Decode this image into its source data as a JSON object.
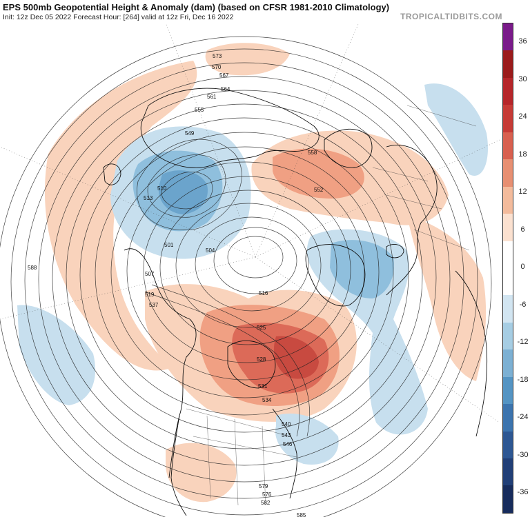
{
  "header": {
    "title": "EPS 500mb Geopotential Height & Anomaly (dam) (based on CFSR 1981-2010 Climatology)",
    "subtitle": "Init: 12z Dec 05 2022   Forecast Hour: [264]   valid at 12z Fri, Dec 16 2022",
    "brand": "TROPICALTIDBITS.COM"
  },
  "colorbar": {
    "ticks": [
      "36",
      "30",
      "24",
      "18",
      "12",
      "6",
      "0",
      "-6",
      "-12",
      "-18",
      "-24",
      "-30",
      "-36"
    ],
    "colors": [
      "#7a1a8a",
      "#9b1b1b",
      "#b6262a",
      "#c63b36",
      "#d8604f",
      "#e78f72",
      "#f3bb9c",
      "#fbe1d0",
      "#ffffff",
      "#ffffff",
      "#d2e5f1",
      "#a6cde3",
      "#7cb0d3",
      "#5494c3",
      "#3c74ae",
      "#2d5793",
      "#213f77",
      "#172c5c"
    ]
  },
  "map": {
    "projection": "north-polar-stereographic",
    "contour_labels": [
      "501",
      "504",
      "507",
      "510",
      "513",
      "516",
      "519",
      "525",
      "528",
      "531",
      "534",
      "537",
      "540",
      "543",
      "546",
      "549",
      "552",
      "555",
      "558",
      "561",
      "564",
      "567",
      "570",
      "573",
      "576",
      "579",
      "582",
      "585",
      "588"
    ],
    "anomaly_regions": [
      {
        "name": "Eastern Canada ridge",
        "sign": "positive",
        "intensity": "strong"
      },
      {
        "name": "Scandinavia ridge",
        "sign": "positive",
        "intensity": "moderate"
      },
      {
        "name": "Eastern Siberia trough",
        "sign": "negative",
        "intensity": "strong"
      },
      {
        "name": "North Atlantic trough",
        "sign": "negative",
        "intensity": "moderate"
      },
      {
        "name": "Western Europe trough",
        "sign": "negative",
        "intensity": "weak"
      },
      {
        "name": "North Pacific ridge",
        "sign": "positive",
        "intensity": "moderate"
      },
      {
        "name": "Alaska ridge",
        "sign": "positive",
        "intensity": "moderate"
      },
      {
        "name": "Southwest US ridge",
        "sign": "positive",
        "intensity": "weak"
      }
    ]
  }
}
